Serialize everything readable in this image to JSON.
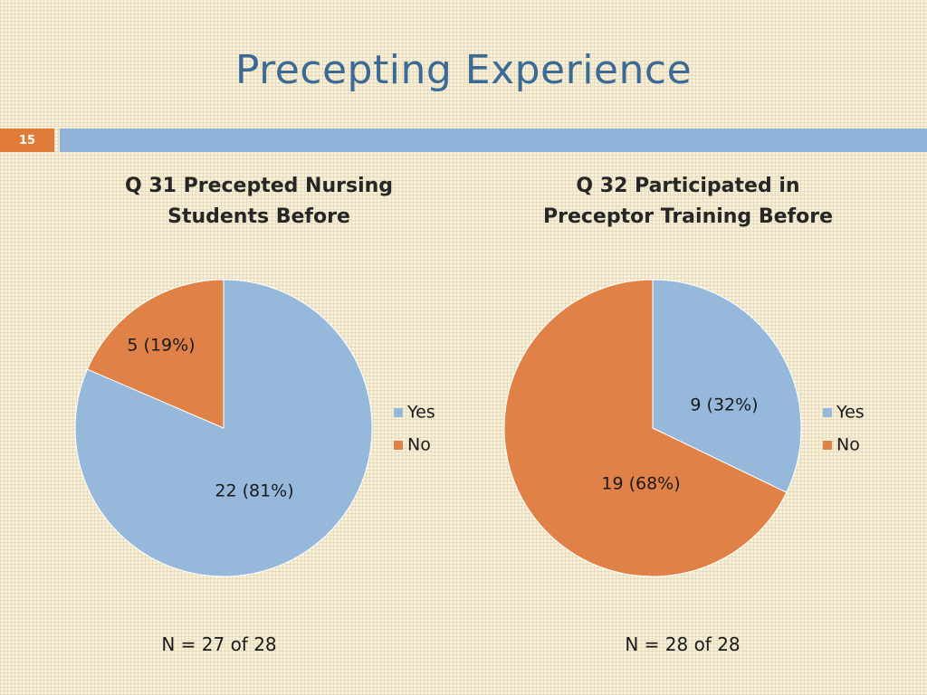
{
  "slide": {
    "title": "Precepting Experience",
    "page_number": "15"
  },
  "colors": {
    "accent_orange": "#e07b39",
    "bar_blue": "#8fb3d9",
    "title_blue": "#3b6a96",
    "yes": "#95b8db",
    "no": "#e08248"
  },
  "chart_data": [
    {
      "type": "pie",
      "title_line1": "Q 31 Precepted Nursing",
      "title_line2": "Students Before",
      "categories": [
        "Yes",
        "No"
      ],
      "values": [
        22,
        5
      ],
      "data_labels": [
        "22 (81%)",
        "5 (19%)"
      ],
      "legend": [
        "Yes",
        "No"
      ],
      "legend_position": "right",
      "note": "N = 27 of 28"
    },
    {
      "type": "pie",
      "title_line1": "Q 32 Participated in",
      "title_line2": "Preceptor Training Before",
      "categories": [
        "Yes",
        "No"
      ],
      "values": [
        9,
        19
      ],
      "data_labels": [
        "9 (32%)",
        "19 (68%)"
      ],
      "legend": [
        "Yes",
        "No"
      ],
      "legend_position": "right",
      "note": "N = 28 of 28"
    }
  ]
}
